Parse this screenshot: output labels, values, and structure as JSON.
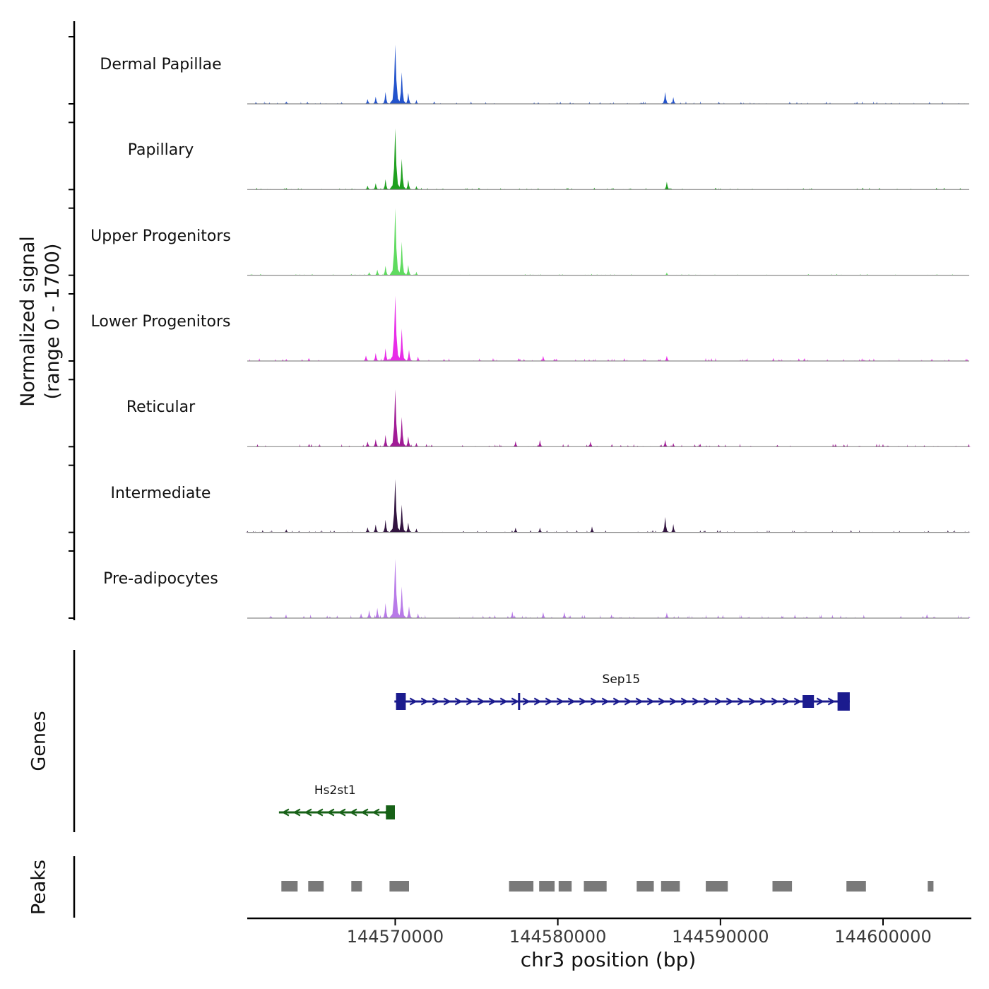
{
  "figure": {
    "y_axis_label_line1": "Normalized signal",
    "y_axis_label_line2": "(range 0 - 1700)",
    "genes_label": "Genes",
    "peaks_label": "Peaks",
    "x_axis_label": "chr3 position (bp)"
  },
  "chart_data": {
    "type": "area",
    "title": "",
    "xlabel": "chr3 position (bp)",
    "ylabel": "Normalized signal (range 0 - 1700)",
    "y_range": [
      0,
      1700
    ],
    "grid": false,
    "region": {
      "chrom": "chr3",
      "start": 144560900,
      "end": 144605300
    },
    "x_ticks": [
      {
        "bp": 144570000,
        "label": "144570000"
      },
      {
        "bp": 144580000,
        "label": "144580000"
      },
      {
        "bp": 144590000,
        "label": "144590000"
      },
      {
        "bp": 144600000,
        "label": "144600000"
      }
    ],
    "colors": {
      "axis": "#000000",
      "baseline": "#8a8a8a",
      "peaks": "#7a7a7a",
      "tick_label": "#3a3a3a"
    },
    "tracks": [
      {
        "label": "Dermal Papillae",
        "color": "#2353cc",
        "noise": 1.0,
        "peaks": [
          [
            144563300,
            60,
            220
          ],
          [
            144564600,
            50,
            200
          ],
          [
            144566700,
            40,
            200
          ],
          [
            144568300,
            120,
            260
          ],
          [
            144568800,
            180,
            260
          ],
          [
            144569400,
            300,
            260
          ],
          [
            144570000,
            1500,
            360
          ],
          [
            144570400,
            800,
            300
          ],
          [
            144570800,
            280,
            260
          ],
          [
            144571300,
            100,
            220
          ],
          [
            144572400,
            60,
            200
          ],
          [
            144578800,
            35,
            200
          ],
          [
            144586600,
            300,
            280
          ],
          [
            144587100,
            170,
            240
          ],
          [
            144589900,
            50,
            200
          ],
          [
            144600500,
            25,
            200
          ]
        ]
      },
      {
        "label": "Papillary",
        "color": "#1fa01f",
        "noise": 0.8,
        "peaks": [
          [
            144563300,
            40,
            200
          ],
          [
            144568300,
            100,
            260
          ],
          [
            144568800,
            160,
            260
          ],
          [
            144569400,
            260,
            260
          ],
          [
            144570000,
            1550,
            360
          ],
          [
            144570400,
            780,
            300
          ],
          [
            144570800,
            250,
            260
          ],
          [
            144571300,
            90,
            220
          ],
          [
            144578800,
            25,
            200
          ],
          [
            144586700,
            200,
            260
          ],
          [
            144590000,
            25,
            200
          ]
        ]
      },
      {
        "label": "Upper Progenitors",
        "color": "#5fdb5f",
        "noise": 0.6,
        "peaks": [
          [
            144568400,
            80,
            260
          ],
          [
            144568900,
            140,
            260
          ],
          [
            144569400,
            240,
            260
          ],
          [
            144570000,
            1700,
            360
          ],
          [
            144570400,
            850,
            300
          ],
          [
            144570800,
            260,
            260
          ],
          [
            144571300,
            90,
            220
          ],
          [
            144586700,
            70,
            220
          ]
        ]
      },
      {
        "label": "Lower Progenitors",
        "color": "#e82ce8",
        "noise": 1.3,
        "peaks": [
          [
            144563300,
            50,
            200
          ],
          [
            144564700,
            60,
            200
          ],
          [
            144568200,
            140,
            260
          ],
          [
            144568800,
            200,
            260
          ],
          [
            144569400,
            320,
            260
          ],
          [
            144570000,
            1650,
            380
          ],
          [
            144570400,
            820,
            300
          ],
          [
            144570850,
            280,
            260
          ],
          [
            144571400,
            110,
            220
          ],
          [
            144573000,
            50,
            200
          ],
          [
            144577600,
            70,
            220
          ],
          [
            144579100,
            130,
            220
          ],
          [
            144583100,
            40,
            200
          ],
          [
            144586700,
            130,
            240
          ],
          [
            144593600,
            35,
            200
          ],
          [
            144603000,
            50,
            180
          ]
        ]
      },
      {
        "label": "Reticular",
        "color": "#a11b96",
        "noise": 1.2,
        "peaks": [
          [
            144564700,
            70,
            220
          ],
          [
            144568300,
            130,
            260
          ],
          [
            144568800,
            190,
            260
          ],
          [
            144569400,
            300,
            260
          ],
          [
            144570000,
            1450,
            360
          ],
          [
            144570400,
            750,
            300
          ],
          [
            144570800,
            260,
            260
          ],
          [
            144571300,
            100,
            220
          ],
          [
            144577400,
            140,
            240
          ],
          [
            144578900,
            170,
            240
          ],
          [
            144582000,
            130,
            240
          ],
          [
            144586600,
            170,
            240
          ],
          [
            144587100,
            90,
            220
          ],
          [
            144589900,
            50,
            200
          ],
          [
            144593500,
            45,
            200
          ],
          [
            144600300,
            30,
            200
          ]
        ]
      },
      {
        "label": "Intermediate",
        "color": "#321440",
        "noise": 1.0,
        "peaks": [
          [
            144563300,
            80,
            220
          ],
          [
            144568300,
            130,
            260
          ],
          [
            144568800,
            200,
            260
          ],
          [
            144569400,
            320,
            260
          ],
          [
            144570000,
            1350,
            360
          ],
          [
            144570400,
            700,
            300
          ],
          [
            144570800,
            250,
            260
          ],
          [
            144571300,
            100,
            220
          ],
          [
            144577400,
            120,
            240
          ],
          [
            144578900,
            120,
            240
          ],
          [
            144582100,
            150,
            240
          ],
          [
            144586600,
            390,
            280
          ],
          [
            144587100,
            210,
            240
          ],
          [
            144602800,
            30,
            180
          ]
        ]
      },
      {
        "label": "Pre-adipocytes",
        "color": "#b87ae8",
        "noise": 1.6,
        "peaks": [
          [
            144567900,
            120,
            240
          ],
          [
            144568400,
            200,
            260
          ],
          [
            144568900,
            260,
            260
          ],
          [
            144569400,
            380,
            260
          ],
          [
            144570000,
            1500,
            380
          ],
          [
            144570400,
            800,
            300
          ],
          [
            144570850,
            300,
            260
          ],
          [
            144571400,
            120,
            220
          ],
          [
            144577200,
            170,
            240
          ],
          [
            144579100,
            150,
            240
          ],
          [
            144580400,
            150,
            240
          ],
          [
            144583300,
            90,
            220
          ],
          [
            144586700,
            140,
            240
          ],
          [
            144595300,
            40,
            200
          ],
          [
            144602700,
            100,
            200
          ]
        ]
      }
    ],
    "genes": [
      {
        "name": "Sep15",
        "strand": "+",
        "color": "#1b1b8e",
        "row": 0,
        "start": 144569950,
        "end": 144597950,
        "label_bp": 144583900,
        "exons": [
          [
            144570050,
            144570650,
            24
          ],
          [
            144577550,
            144577680,
            24
          ],
          [
            144595050,
            144595750,
            18
          ],
          [
            144597200,
            144597950,
            26
          ]
        ]
      },
      {
        "name": "Hs2st1",
        "strand": "-",
        "color": "#176117",
        "row": 1,
        "start": 144562850,
        "end": 144569980,
        "label_bp": 144566300,
        "exons": [
          [
            144569430,
            144569980,
            20
          ]
        ]
      }
    ],
    "peak_intervals": [
      [
        144563000,
        144564000
      ],
      [
        144564650,
        144565600
      ],
      [
        144567300,
        144567950
      ],
      [
        144569650,
        144570850
      ],
      [
        144577000,
        144578500
      ],
      [
        144578850,
        144579800
      ],
      [
        144580050,
        144580850
      ],
      [
        144581600,
        144583000
      ],
      [
        144584850,
        144585900
      ],
      [
        144586350,
        144587500
      ],
      [
        144589100,
        144590450
      ],
      [
        144593200,
        144594400
      ],
      [
        144597750,
        144598950
      ],
      [
        144602750,
        144603100
      ]
    ]
  }
}
